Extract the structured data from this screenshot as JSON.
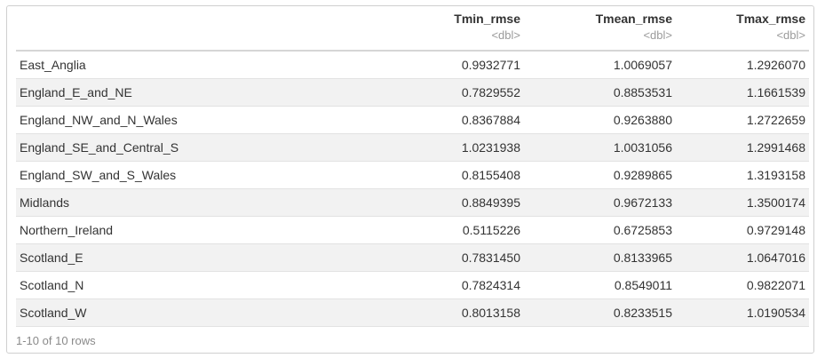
{
  "table": {
    "columns": [
      {
        "name": "Tmin_rmse",
        "type": "<dbl>"
      },
      {
        "name": "Tmean_rmse",
        "type": "<dbl>"
      },
      {
        "name": "Tmax_rmse",
        "type": "<dbl>"
      }
    ],
    "rows": [
      {
        "label": "East_Anglia",
        "values": [
          "0.9932771",
          "1.0069057",
          "1.2926070"
        ]
      },
      {
        "label": "England_E_and_NE",
        "values": [
          "0.7829552",
          "0.8853531",
          "1.1661539"
        ]
      },
      {
        "label": "England_NW_and_N_Wales",
        "values": [
          "0.8367884",
          "0.9263880",
          "1.2722659"
        ]
      },
      {
        "label": "England_SE_and_Central_S",
        "values": [
          "1.0231938",
          "1.0031056",
          "1.2991468"
        ]
      },
      {
        "label": "England_SW_and_S_Wales",
        "values": [
          "0.8155408",
          "0.9289865",
          "1.3193158"
        ]
      },
      {
        "label": "Midlands",
        "values": [
          "0.8849395",
          "0.9672133",
          "1.3500174"
        ]
      },
      {
        "label": "Northern_Ireland",
        "values": [
          "0.5115226",
          "0.6725853",
          "0.9729148"
        ]
      },
      {
        "label": "Scotland_E",
        "values": [
          "0.7831450",
          "0.8133965",
          "1.0647016"
        ]
      },
      {
        "label": "Scotland_N",
        "values": [
          "0.7824314",
          "0.8549011",
          "0.9822071"
        ]
      },
      {
        "label": "Scotland_W",
        "values": [
          "0.8013158",
          "0.8233515",
          "1.0190534"
        ]
      }
    ],
    "footer": "1-10 of 10 rows"
  }
}
